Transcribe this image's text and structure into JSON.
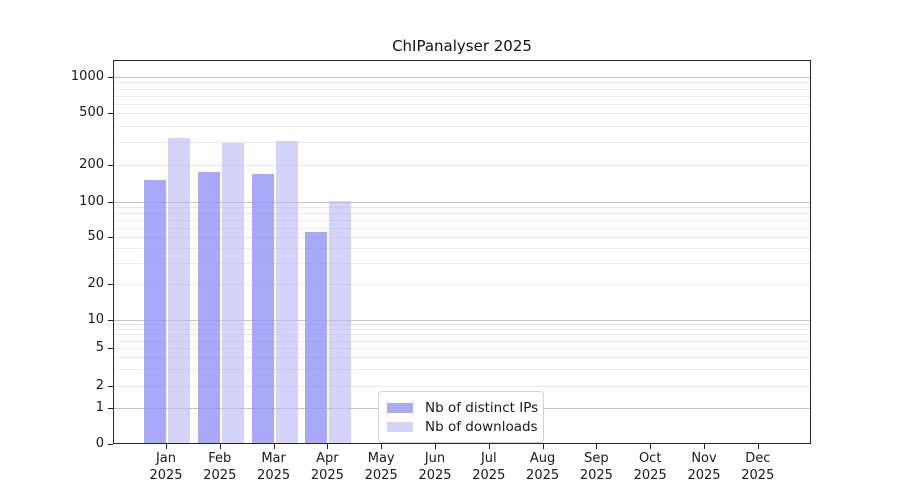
{
  "chart_data": {
    "type": "bar",
    "title": "ChIPanalyser 2025",
    "x": {
      "categories": [
        "Jan",
        "Feb",
        "Mar",
        "Apr",
        "May",
        "Jun",
        "Jul",
        "Aug",
        "Sep",
        "Oct",
        "Nov",
        "Dec"
      ],
      "sub_label": "2025"
    },
    "y_axis": {
      "scale": "symlog",
      "tick_labels": [
        "0",
        "1",
        "2",
        "5",
        "10",
        "20",
        "50",
        "100",
        "200",
        "500",
        "1000"
      ],
      "tick_values": [
        0,
        1,
        2,
        5,
        10,
        20,
        50,
        100,
        200,
        500,
        1000
      ],
      "ylim": [
        0,
        1500
      ]
    },
    "series": [
      {
        "name": "Nb of distinct IPs",
        "color": "#9494fa",
        "opacity": 0.8,
        "values": [
          150,
          176,
          170,
          55,
          null,
          null,
          null,
          null,
          null,
          null,
          null,
          null
        ]
      },
      {
        "name": "Nb of downloads",
        "color": "#babaf7",
        "opacity": 0.62,
        "values": [
          320,
          295,
          305,
          102,
          null,
          null,
          null,
          null,
          null,
          null,
          null,
          null
        ]
      }
    ],
    "legend": {
      "position": "bottom-center",
      "entries": [
        "Nb of distinct IPs",
        "Nb of downloads"
      ]
    },
    "grid": {
      "major_color": "#c4c4c4",
      "minor_color": "#eaeaea"
    }
  }
}
